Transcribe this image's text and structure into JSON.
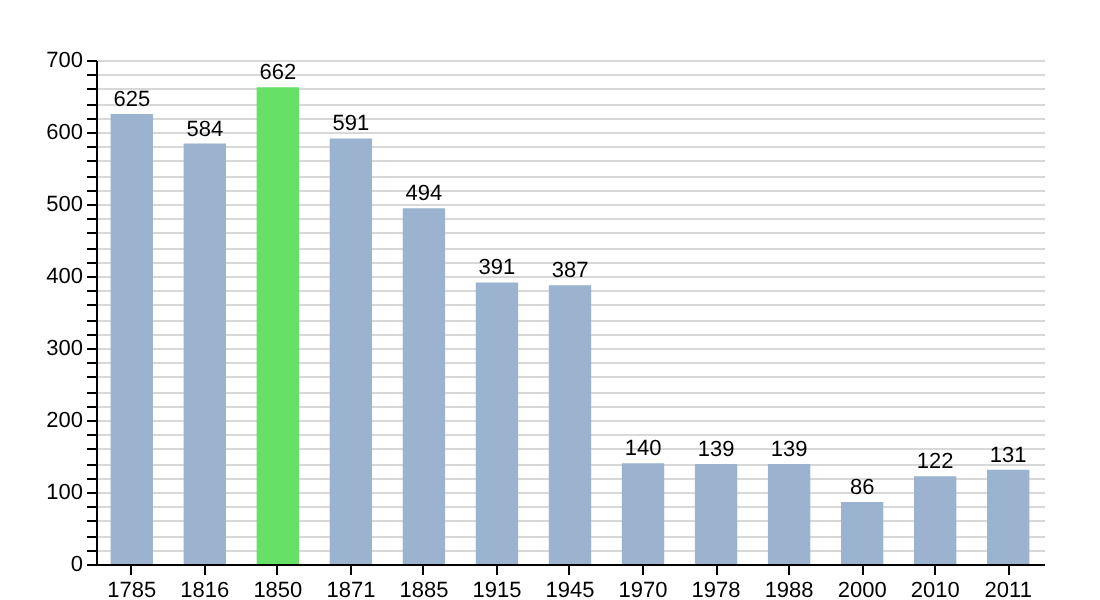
{
  "chart_data": {
    "type": "bar",
    "categories": [
      "1785",
      "1816",
      "1850",
      "1871",
      "1885",
      "1915",
      "1945",
      "1970",
      "1978",
      "1988",
      "2000",
      "2010",
      "2011"
    ],
    "values": [
      625,
      584,
      662,
      591,
      494,
      391,
      387,
      140,
      139,
      139,
      86,
      122,
      131
    ],
    "colors": [
      "#9bb3ce",
      "#9bb3ce",
      "#66e066",
      "#9bb3ce",
      "#9bb3ce",
      "#9bb3ce",
      "#9bb3ce",
      "#9bb3ce",
      "#9bb3ce",
      "#9bb3ce",
      "#9bb3ce",
      "#9bb3ce",
      "#9bb3ce"
    ],
    "ylim": [
      0,
      700
    ],
    "yticks": [
      0,
      {
        "value": 20,
        "label": null
      },
      {
        "value": 40,
        "label": null
      },
      {
        "value": 60,
        "label": null
      },
      {
        "value": 80,
        "label": null
      },
      100,
      {
        "value": 120,
        "label": null
      },
      {
        "value": 140,
        "label": null
      },
      {
        "value": 160,
        "label": null
      },
      {
        "value": 180,
        "label": null
      },
      200,
      {
        "value": 220,
        "label": null
      },
      {
        "value": 240,
        "label": null
      },
      {
        "value": 260,
        "label": null
      },
      {
        "value": 280,
        "label": null
      },
      300,
      {
        "value": 320,
        "label": null
      },
      {
        "value": 340,
        "label": null
      },
      {
        "value": 360,
        "label": null
      },
      {
        "value": 380,
        "label": null
      },
      400,
      {
        "value": 420,
        "label": null
      },
      {
        "value": 440,
        "label": null
      },
      {
        "value": 460,
        "label": null
      },
      {
        "value": 480,
        "label": null
      },
      500,
      {
        "value": 520,
        "label": null
      },
      {
        "value": 540,
        "label": null
      },
      {
        "value": 560,
        "label": null
      },
      {
        "value": 580,
        "label": null
      },
      600,
      {
        "value": 620,
        "label": null
      },
      {
        "value": 640,
        "label": null
      },
      {
        "value": 660,
        "label": null
      },
      {
        "value": 680,
        "label": null
      },
      700
    ],
    "grid": true,
    "data_labels": true
  }
}
